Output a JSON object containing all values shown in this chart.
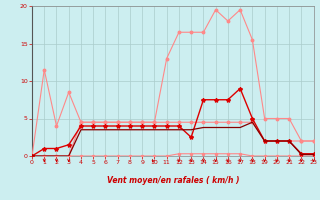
{
  "xlabel": "Vent moyen/en rafales ( km/h )",
  "xlim": [
    0,
    23
  ],
  "ylim": [
    0,
    20
  ],
  "xticks": [
    0,
    1,
    2,
    3,
    4,
    5,
    6,
    7,
    8,
    9,
    10,
    11,
    12,
    13,
    14,
    15,
    16,
    17,
    18,
    19,
    20,
    21,
    22,
    23
  ],
  "yticks": [
    0,
    5,
    10,
    15,
    20
  ],
  "background_color": "#cceef0",
  "grid_color": "#aacccc",
  "series": [
    {
      "name": "pink_upper",
      "x": [
        0,
        1,
        2,
        3,
        4,
        5,
        6,
        7,
        8,
        9,
        10,
        11,
        12,
        13,
        14,
        15,
        16,
        17,
        18,
        19,
        20,
        21,
        22,
        23
      ],
      "y": [
        0,
        11.5,
        4,
        8.5,
        4.5,
        4.5,
        4.5,
        4.5,
        4.5,
        4.5,
        4.5,
        13,
        16.5,
        16.5,
        16.5,
        19.5,
        18.0,
        19.5,
        15.5,
        5.0,
        5.0,
        5.0,
        2.0,
        2.0
      ],
      "color": "#ff8888",
      "linewidth": 0.8,
      "marker": "o",
      "markersize": 1.8
    },
    {
      "name": "pink_mid",
      "x": [
        0,
        1,
        2,
        3,
        4,
        5,
        6,
        7,
        8,
        9,
        10,
        11,
        12,
        13,
        14,
        15,
        16,
        17,
        18,
        19,
        20,
        21,
        22,
        23
      ],
      "y": [
        0,
        0,
        0,
        0,
        4.5,
        4.5,
        4.5,
        4.5,
        4.5,
        4.5,
        4.5,
        4.5,
        4.5,
        4.5,
        4.5,
        4.5,
        4.5,
        4.5,
        4.5,
        2.0,
        2.0,
        2.0,
        2.0,
        2.0
      ],
      "color": "#ff8888",
      "linewidth": 0.8,
      "marker": "o",
      "markersize": 1.8
    },
    {
      "name": "pink_lower",
      "x": [
        0,
        1,
        2,
        3,
        4,
        5,
        6,
        7,
        8,
        9,
        10,
        11,
        12,
        13,
        14,
        15,
        16,
        17,
        18,
        19,
        20,
        21,
        22,
        23
      ],
      "y": [
        0,
        0,
        0,
        0,
        0,
        0,
        0,
        0,
        0,
        0,
        0,
        0,
        0.3,
        0.3,
        0.3,
        0.3,
        0.3,
        0.3,
        0,
        0,
        0,
        0,
        0,
        0
      ],
      "color": "#ff8888",
      "linewidth": 0.8,
      "marker": "o",
      "markersize": 1.5
    },
    {
      "name": "red_main",
      "x": [
        0,
        1,
        2,
        3,
        4,
        5,
        6,
        7,
        8,
        9,
        10,
        11,
        12,
        13,
        14,
        15,
        16,
        17,
        18,
        19,
        20,
        21,
        22,
        23
      ],
      "y": [
        0,
        1.0,
        1.0,
        1.5,
        4.0,
        4.0,
        4.0,
        4.0,
        4.0,
        4.0,
        4.0,
        4.0,
        4.0,
        2.5,
        7.5,
        7.5,
        7.5,
        9.0,
        5.0,
        2.0,
        2.0,
        2.0,
        0.3,
        0.3
      ],
      "color": "#dd0000",
      "linewidth": 1.0,
      "marker": "*",
      "markersize": 3.0
    },
    {
      "name": "dark_flat",
      "x": [
        0,
        1,
        2,
        3,
        4,
        5,
        6,
        7,
        8,
        9,
        10,
        11,
        12,
        13,
        14,
        15,
        16,
        17,
        18,
        19,
        20,
        21,
        22,
        23
      ],
      "y": [
        0,
        0,
        0,
        0,
        3.5,
        3.5,
        3.5,
        3.5,
        3.5,
        3.5,
        3.5,
        3.5,
        3.5,
        3.5,
        3.8,
        3.8,
        3.8,
        3.8,
        4.5,
        2.0,
        2.0,
        2.0,
        0.2,
        0.2
      ],
      "color": "#880000",
      "linewidth": 0.9,
      "marker": null,
      "markersize": 0
    }
  ],
  "arrows_down": [
    1,
    2,
    3,
    12,
    13,
    14,
    15,
    16,
    17,
    18,
    19,
    20,
    21,
    22,
    23
  ],
  "arrows_angled": [
    10
  ],
  "arrow_color": "#cc0000"
}
